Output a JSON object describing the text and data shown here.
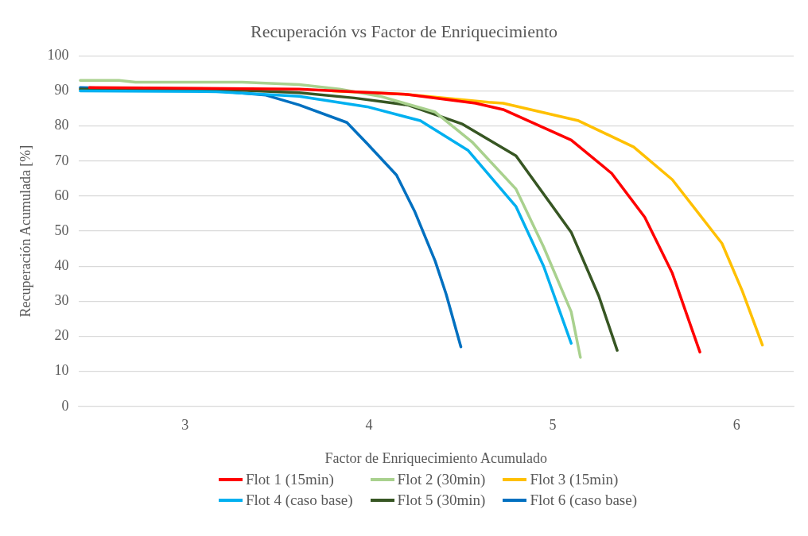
{
  "chart_data": {
    "type": "line",
    "title": "Recuperación vs Factor de Enriquecimiento",
    "xlabel": "Factor de Enriquecimiento Acumulado",
    "ylabel": "Recuperación Acumulada [%]",
    "xlim": [
      2.42,
      6.31
    ],
    "xticks": [
      3,
      4,
      5,
      6
    ],
    "ylim": [
      0,
      100
    ],
    "yticks": [
      0,
      10,
      20,
      30,
      40,
      50,
      60,
      70,
      80,
      90,
      100
    ],
    "grid": "y",
    "legend": "bottom",
    "marker": "none",
    "line_style": "solid",
    "series": [
      {
        "name": "Flot 1 (15min)",
        "color": "#ff0000",
        "x": [
          2.48,
          3.62,
          4.21,
          4.58,
          4.73,
          5.1,
          5.32,
          5.5,
          5.65,
          5.8
        ],
        "values": [
          91,
          90.5,
          89,
          86.5,
          84.7,
          76,
          66.5,
          54,
          38,
          15.5
        ]
      },
      {
        "name": "Flot 2 (30min)",
        "color": "#a9d18e",
        "x": [
          2.43,
          2.64,
          2.73,
          3.31,
          3.62,
          3.84,
          4.06,
          4.36,
          4.56,
          4.8,
          4.95,
          5.1,
          5.15
        ],
        "values": [
          93,
          93,
          92.5,
          92.5,
          91.8,
          90.5,
          88.5,
          84,
          75.5,
          62,
          45.5,
          27,
          14
        ]
      },
      {
        "name": "Flot 3 (15min)",
        "color": "#ffc000",
        "x": [
          3.8,
          4.21,
          4.65,
          4.73,
          5.14,
          5.44,
          5.65,
          5.92,
          6.03,
          6.14
        ],
        "values": [
          90,
          89,
          86.8,
          86.5,
          81.5,
          74,
          64.7,
          46.5,
          33,
          17.5
        ]
      },
      {
        "name": "Flot 4 (caso base)",
        "color": "#00b0f0",
        "x": [
          2.43,
          3.17,
          3.62,
          3.99,
          4.28,
          4.54,
          4.8,
          4.95,
          5.1
        ],
        "values": [
          90,
          89.8,
          88.5,
          85.5,
          81.5,
          73,
          57,
          40,
          18
        ]
      },
      {
        "name": "Flot 5 (30min)",
        "color": "#375623",
        "x": [
          2.43,
          3.31,
          3.62,
          3.92,
          4.21,
          4.51,
          4.8,
          5.1,
          5.25,
          5.35
        ],
        "values": [
          90.5,
          90.2,
          89.5,
          88,
          86,
          80.5,
          71.5,
          49.7,
          31.5,
          16
        ]
      },
      {
        "name": "Flot 6 (caso base)",
        "color": "#0070c0",
        "x": [
          2.43,
          3.17,
          3.44,
          3.62,
          3.88,
          3.99,
          4.15,
          4.25,
          4.36,
          4.42,
          4.5
        ],
        "values": [
          91,
          90,
          88.8,
          86,
          81,
          75,
          66,
          55.5,
          41.5,
          32,
          17
        ]
      }
    ]
  }
}
